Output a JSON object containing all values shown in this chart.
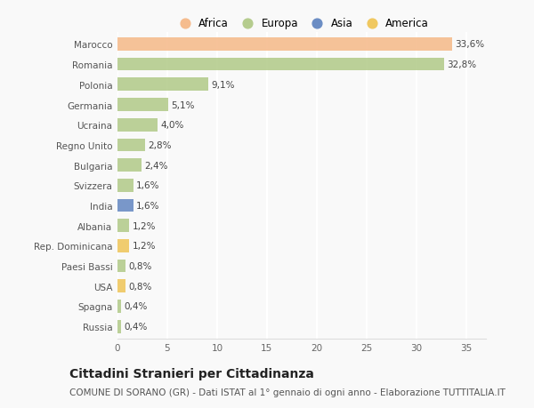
{
  "countries": [
    "Marocco",
    "Romania",
    "Polonia",
    "Germania",
    "Ucraina",
    "Regno Unito",
    "Bulgaria",
    "Svizzera",
    "India",
    "Albania",
    "Rep. Dominicana",
    "Paesi Bassi",
    "USA",
    "Spagna",
    "Russia"
  ],
  "values": [
    33.6,
    32.8,
    9.1,
    5.1,
    4.0,
    2.8,
    2.4,
    1.6,
    1.6,
    1.2,
    1.2,
    0.8,
    0.8,
    0.4,
    0.4
  ],
  "labels": [
    "33,6%",
    "32,8%",
    "9,1%",
    "5,1%",
    "4,0%",
    "2,8%",
    "2,4%",
    "1,6%",
    "1,6%",
    "1,2%",
    "1,2%",
    "0,8%",
    "0,8%",
    "0,4%",
    "0,4%"
  ],
  "continents": [
    "Africa",
    "Europa",
    "Europa",
    "Europa",
    "Europa",
    "Europa",
    "Europa",
    "Europa",
    "Asia",
    "Europa",
    "America",
    "Europa",
    "America",
    "Europa",
    "Europa"
  ],
  "colors": {
    "Africa": "#F5BC8E",
    "Europa": "#B5CC8E",
    "Asia": "#6B8DC4",
    "America": "#F0C860"
  },
  "legend_order": [
    "Africa",
    "Europa",
    "Asia",
    "America"
  ],
  "title": "Cittadini Stranieri per Cittadinanza",
  "subtitle": "COMUNE DI SORANO (GR) - Dati ISTAT al 1° gennaio di ogni anno - Elaborazione TUTTITALIA.IT",
  "xlim": [
    0,
    37
  ],
  "xticks": [
    0,
    5,
    10,
    15,
    20,
    25,
    30,
    35
  ],
  "background_color": "#f9f9f9",
  "grid_color": "#ffffff",
  "bar_height": 0.65,
  "title_fontsize": 10,
  "subtitle_fontsize": 7.5,
  "label_fontsize": 7.5,
  "tick_fontsize": 7.5,
  "legend_fontsize": 8.5
}
